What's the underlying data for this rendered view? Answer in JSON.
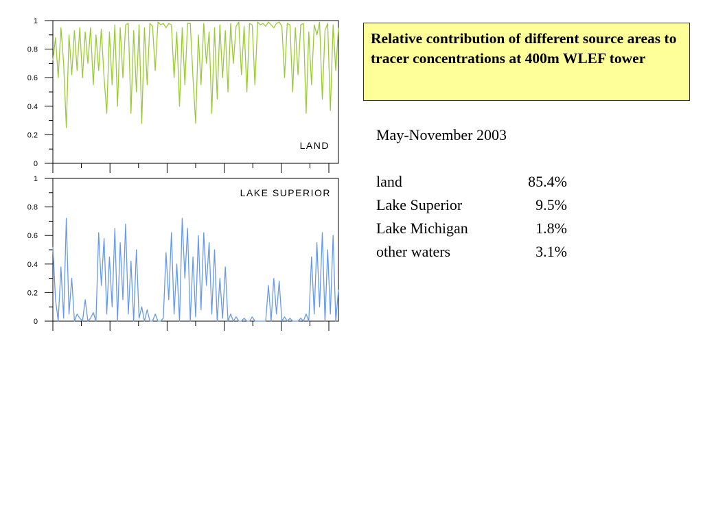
{
  "title": "Relative contribution of different source areas to tracer concentrations at 400m WLEF tower",
  "period": "May-November 2003",
  "stats": [
    {
      "name": "land",
      "value": "85.4%"
    },
    {
      "name": "Lake Superior",
      "value": "9.5%"
    },
    {
      "name": "Lake Michigan",
      "value": "1.8%"
    },
    {
      "name": "other waters",
      "value": "3.1%"
    }
  ],
  "chart_data": [
    {
      "type": "line",
      "label": "LAND",
      "color": "#99cc33",
      "ylim": [
        0,
        1
      ],
      "yticks": [
        "0",
        "0.2",
        "0.4",
        "0.6",
        "0.8",
        "1"
      ],
      "xlabel": "",
      "ylabel": "",
      "grid": false,
      "x_tick_count": 11,
      "xlim": [
        0,
        212
      ],
      "x": [
        0,
        2,
        4,
        6,
        8,
        10,
        12,
        14,
        16,
        18,
        20,
        22,
        24,
        26,
        28,
        30,
        32,
        34,
        36,
        38,
        40,
        42,
        44,
        46,
        48,
        50,
        52,
        54,
        56,
        58,
        60,
        62,
        64,
        66,
        68,
        70,
        72,
        74,
        76,
        78,
        80,
        82,
        84,
        86,
        88,
        90,
        92,
        94,
        96,
        98,
        100,
        102,
        104,
        106,
        108,
        110,
        112,
        114,
        116,
        118,
        120,
        122,
        124,
        126,
        128,
        130,
        132,
        134,
        136,
        138,
        140,
        142,
        144,
        146,
        148,
        150,
        152,
        154,
        156,
        158,
        160,
        162,
        164,
        166,
        168,
        170,
        172,
        174,
        176,
        178,
        180,
        182,
        184,
        186,
        188,
        190,
        192,
        194,
        196,
        198,
        200,
        202,
        204,
        206,
        208,
        210,
        212
      ],
      "values": [
        0.72,
        0.88,
        0.6,
        0.95,
        0.7,
        0.25,
        0.9,
        0.62,
        0.93,
        0.65,
        0.95,
        0.6,
        0.92,
        0.7,
        0.95,
        0.55,
        0.9,
        0.65,
        0.94,
        0.6,
        0.35,
        0.92,
        0.55,
        0.97,
        0.4,
        0.95,
        0.6,
        0.97,
        0.98,
        0.35,
        0.93,
        0.5,
        0.97,
        0.28,
        0.95,
        0.55,
        0.98,
        0.96,
        0.65,
        0.99,
        0.97,
        0.98,
        0.95,
        0.98,
        0.97,
        0.6,
        0.92,
        0.4,
        0.95,
        0.55,
        0.98,
        0.98,
        0.6,
        0.28,
        0.9,
        0.55,
        0.98,
        0.7,
        0.92,
        0.35,
        0.95,
        0.45,
        0.97,
        0.6,
        0.93,
        0.5,
        0.98,
        0.7,
        0.96,
        0.99,
        0.62,
        0.96,
        0.5,
        0.98,
        0.97,
        0.55,
        0.99,
        0.97,
        0.98,
        0.96,
        0.99,
        0.97,
        0.95,
        0.98,
        0.99,
        0.96,
        0.6,
        0.98,
        0.97,
        0.5,
        0.95,
        0.62,
        0.97,
        0.98,
        0.35,
        0.92,
        0.55,
        0.97,
        0.9,
        0.99,
        0.45,
        0.93,
        0.98,
        0.37,
        0.97,
        0.65,
        0.95
      ]
    },
    {
      "type": "line",
      "label": "LAKE SUPERIOR",
      "color": "#6699ee",
      "ylim": [
        0,
        1
      ],
      "yticks": [
        "0",
        "0.2",
        "0.4",
        "0.6",
        "0.8",
        "1"
      ],
      "xlabel": "",
      "ylabel": "",
      "grid": false,
      "x_tick_count": 11,
      "xlim": [
        0,
        212
      ],
      "x": [
        0,
        2,
        4,
        6,
        8,
        10,
        12,
        14,
        16,
        18,
        20,
        22,
        24,
        26,
        28,
        30,
        32,
        34,
        36,
        38,
        40,
        42,
        44,
        46,
        48,
        50,
        52,
        54,
        56,
        58,
        60,
        62,
        64,
        66,
        68,
        70,
        72,
        74,
        76,
        78,
        80,
        82,
        84,
        86,
        88,
        90,
        92,
        94,
        96,
        98,
        100,
        102,
        104,
        106,
        108,
        110,
        112,
        114,
        116,
        118,
        120,
        122,
        124,
        126,
        128,
        130,
        132,
        134,
        136,
        138,
        140,
        142,
        144,
        146,
        148,
        150,
        152,
        154,
        156,
        158,
        160,
        162,
        164,
        166,
        168,
        170,
        172,
        174,
        176,
        178,
        180,
        182,
        184,
        186,
        188,
        190,
        192,
        194,
        196,
        198,
        200,
        202,
        204,
        206,
        208,
        210,
        212
      ],
      "values": [
        0.52,
        0.15,
        0.0,
        0.38,
        0.02,
        0.72,
        0.05,
        0.3,
        0.0,
        0.05,
        0.02,
        0.0,
        0.15,
        0.0,
        0.02,
        0.06,
        0.0,
        0.62,
        0.25,
        0.58,
        0.05,
        0.45,
        0.1,
        0.65,
        0.0,
        0.55,
        0.15,
        0.68,
        0.05,
        0.42,
        0.0,
        0.5,
        0.02,
        0.1,
        0.0,
        0.08,
        0.0,
        0.0,
        0.05,
        0.0,
        0.0,
        0.02,
        0.48,
        0.15,
        0.62,
        0.05,
        0.4,
        0.0,
        0.72,
        0.3,
        0.65,
        0.0,
        0.45,
        0.03,
        0.6,
        0.08,
        0.62,
        0.25,
        0.55,
        0.05,
        0.5,
        0.0,
        0.3,
        0.02,
        0.38,
        0.0,
        0.05,
        0.0,
        0.03,
        0.0,
        0.0,
        0.02,
        0.0,
        0.0,
        0.03,
        0.0,
        0.0,
        0.0,
        0.0,
        0.0,
        0.25,
        0.0,
        0.3,
        0.05,
        0.28,
        0.0,
        0.03,
        0.0,
        0.02,
        0.0,
        0.0,
        0.0,
        0.02,
        0.0,
        0.05,
        0.0,
        0.45,
        0.05,
        0.55,
        0.1,
        0.62,
        0.0,
        0.5,
        0.05,
        0.6,
        0.0,
        0.22
      ]
    }
  ]
}
